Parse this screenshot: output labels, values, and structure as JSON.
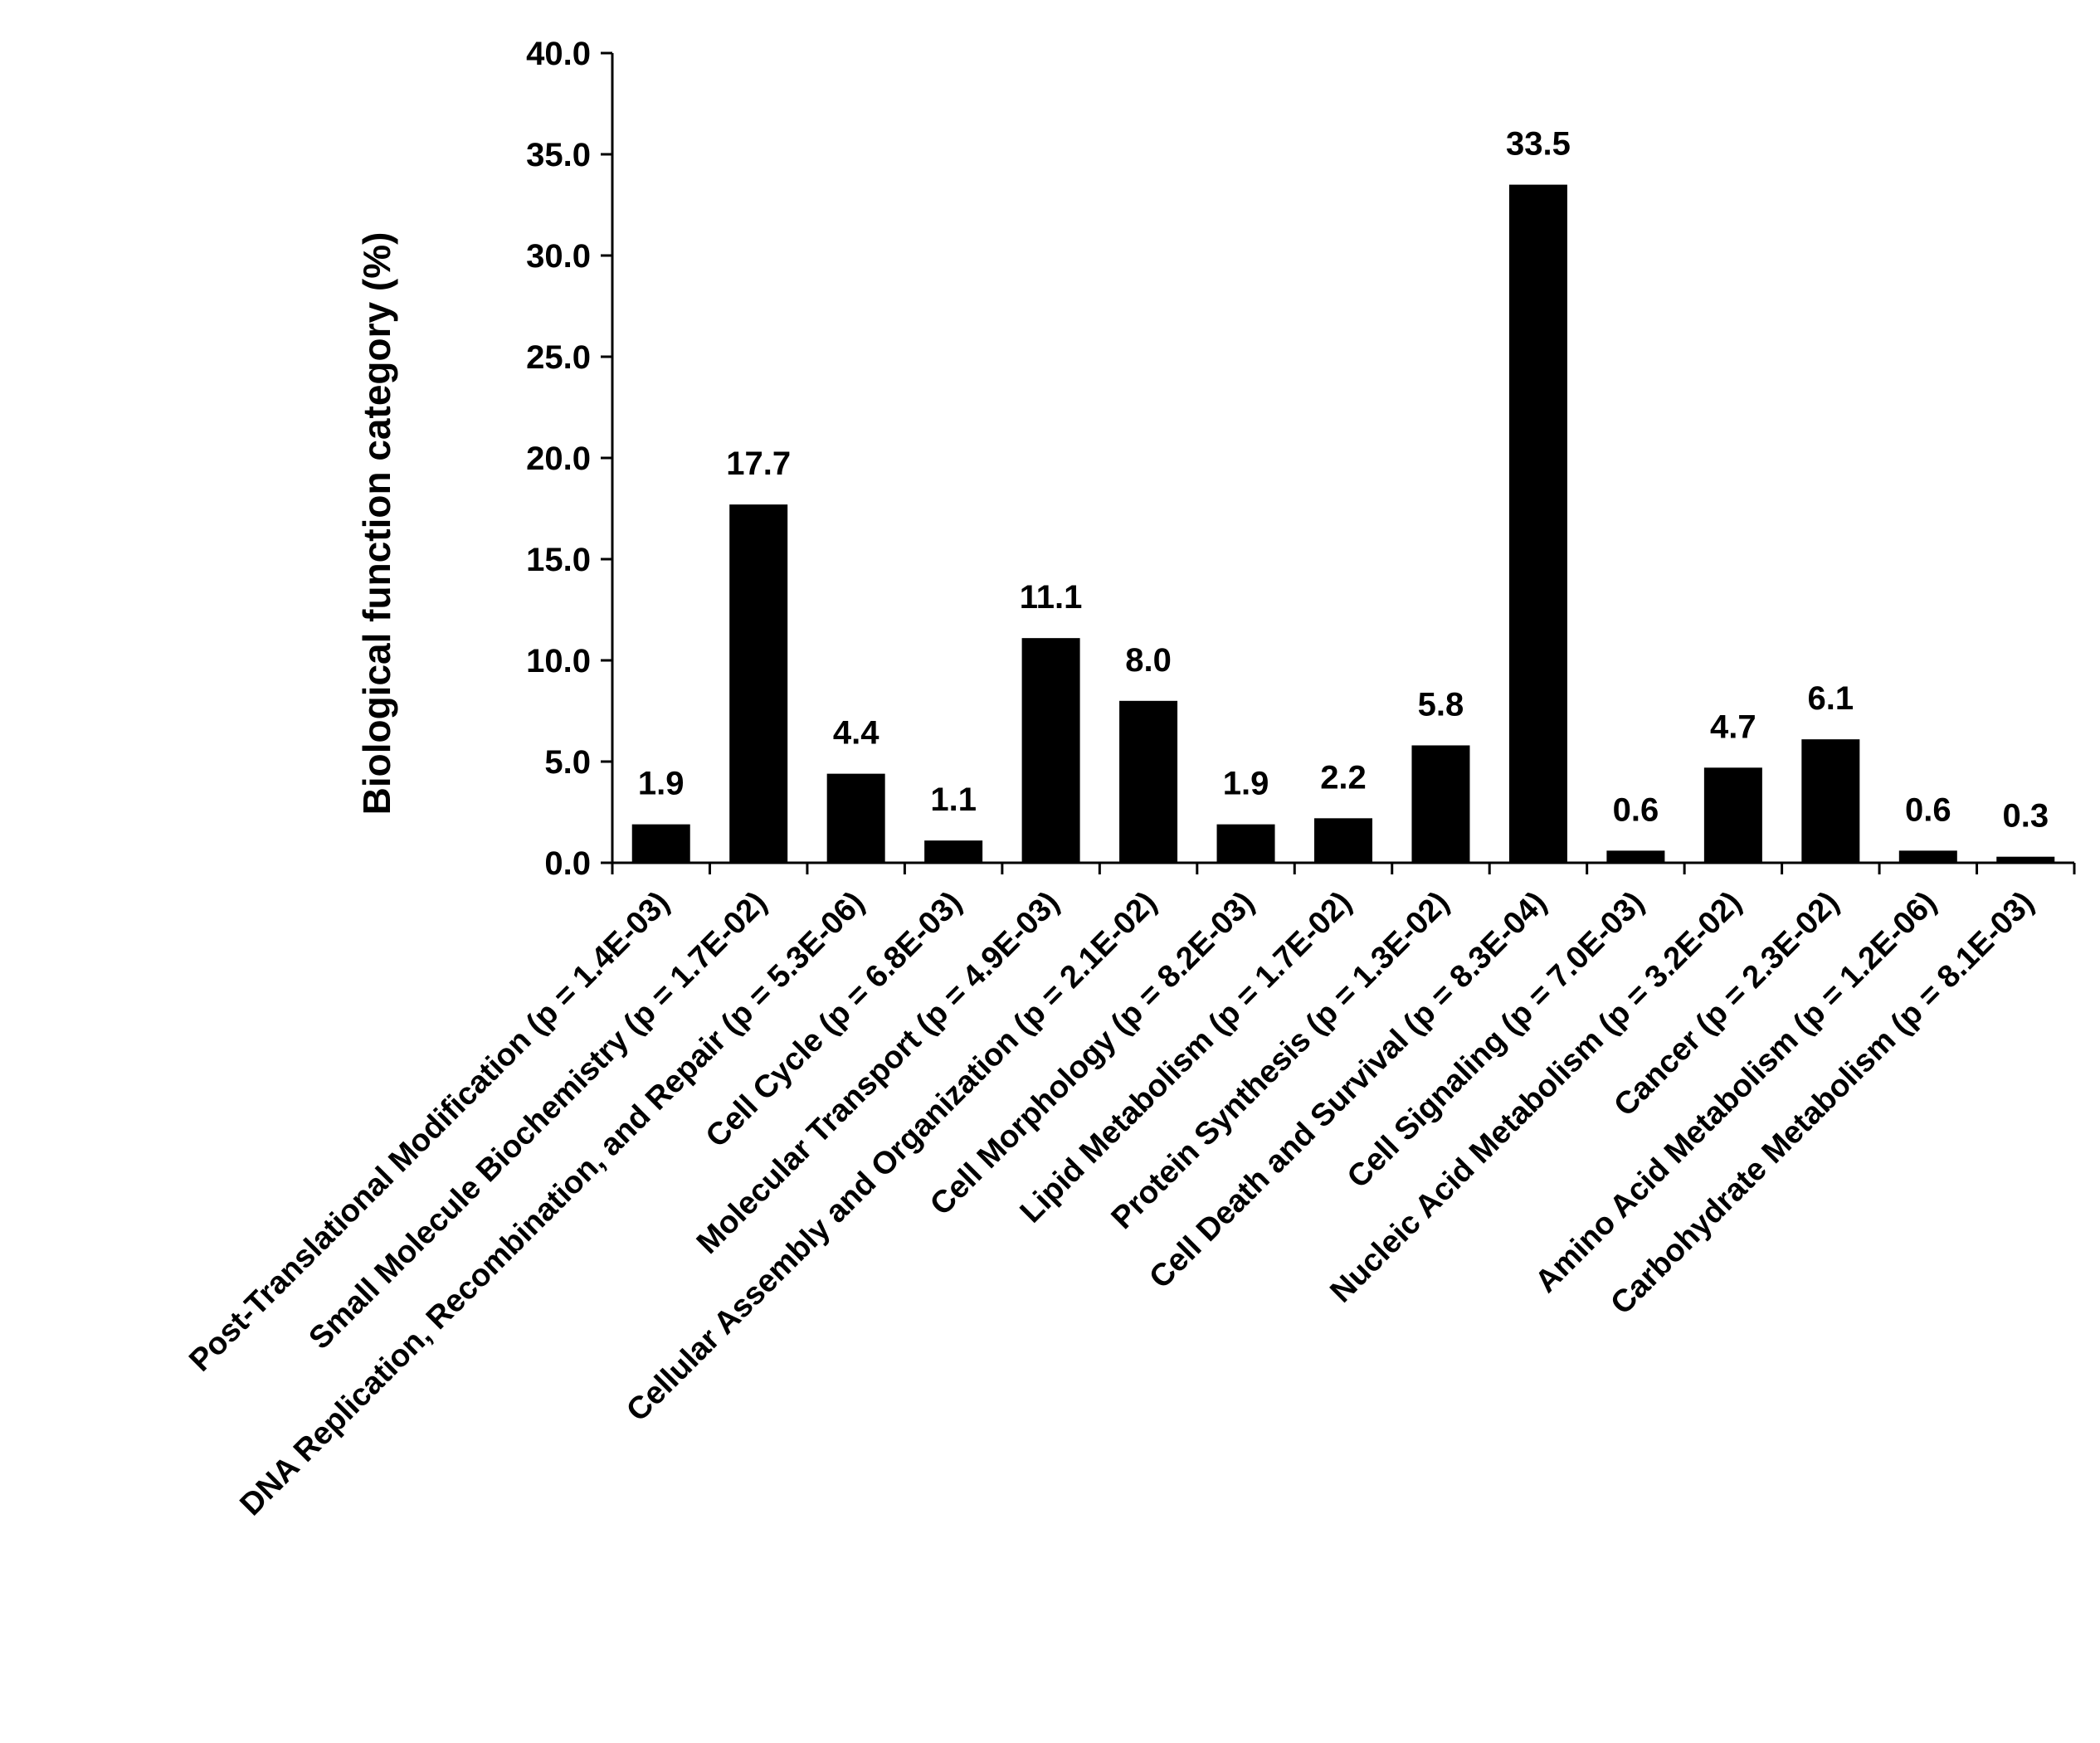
{
  "chart_data": {
    "type": "bar",
    "ylabel": "Biological function category (%)",
    "xlabel": "",
    "ylim": [
      0,
      40
    ],
    "yticks": [
      "0.0",
      "5.0",
      "10.0",
      "15.0",
      "20.0",
      "25.0",
      "30.0",
      "35.0",
      "40.0"
    ],
    "categories": [
      "Post-Translational Modification (p = 1.4E-03)",
      "Small Molecule Biochemistry (p = 1.7E-02)",
      "DNA Replication, Recombination, and Repair (p = 5.3E-06)",
      "Cell Cycle (p = 6.8E-03)",
      "Molecular Transport (p = 4.9E-03)",
      "Cellular Assembly and Organization (p = 2.1E-02)",
      "Cell Morphology (p = 8.2E-03)",
      "Lipid Metabolism (p = 1.7E-02)",
      "Protein Synthesis (p = 1.3E-02)",
      "Cell Death and Survival (p = 8.3E-04)",
      "Cell Signaling (p = 7.0E-03)",
      "Nucleic Acid Metabolism (p = 3.2E-02)",
      "Cancer (p = 2.3E-02)",
      "Amino Acid Metabolism (p = 1.2E-06)",
      "Carbohydrate Metabolism (p = 8.1E-03)"
    ],
    "values": [
      1.9,
      17.7,
      4.4,
      1.1,
      11.1,
      8.0,
      1.9,
      2.2,
      5.8,
      33.5,
      0.6,
      4.7,
      6.1,
      0.6,
      0.3
    ],
    "data_labels": [
      "1.9",
      "17.7",
      "4.4",
      "1.1",
      "11.1",
      "8.0",
      "1.9",
      "2.2",
      "5.8",
      "33.5",
      "0.6",
      "4.7",
      "6.1",
      "0.6",
      "0.3"
    ],
    "grid": false,
    "legend": "none",
    "bar_color": "#000000"
  }
}
